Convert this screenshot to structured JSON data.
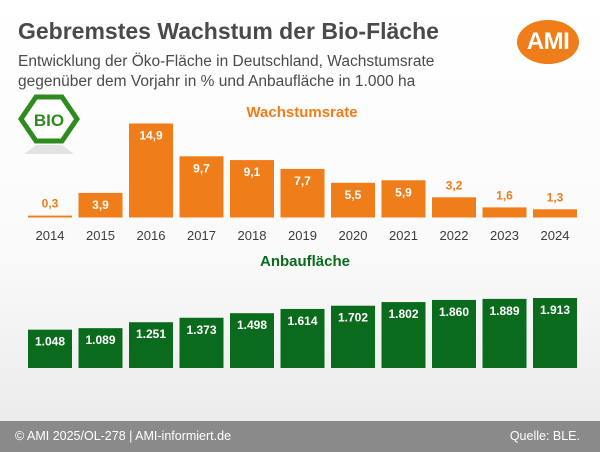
{
  "header": {
    "title": "Gebremstes Wachstum der Bio-Fläche",
    "subtitle": "Entwicklung der Öko-Fläche in Deutschland, Wachstumsrate gegenüber dem Vorjahr in % und Anbaufläche in 1.000 ha",
    "logo_text": "AMI",
    "badge_text": "BIO"
  },
  "footer": {
    "left": "© AMI 2025/OL-278 | AMI-informiert.de",
    "right": "Quelle: BLE."
  },
  "colors": {
    "orange": "#ef7d1a",
    "green": "#0b6b1d",
    "title_gray": "#4a4a4a",
    "footer_gray": "#8a8a8a"
  },
  "chart_data": [
    {
      "type": "bar",
      "title": "Wachstumsrate",
      "categories": [
        "2014",
        "2015",
        "2016",
        "2017",
        "2018",
        "2019",
        "2020",
        "2021",
        "2022",
        "2023",
        "2024"
      ],
      "values": [
        0.3,
        3.9,
        14.9,
        9.7,
        9.1,
        7.7,
        5.5,
        5.9,
        3.2,
        1.6,
        1.3
      ],
      "labels": [
        "0,3",
        "3,9",
        "14,9",
        "9,7",
        "9,1",
        "7,7",
        "5,5",
        "5,9",
        "3,2",
        "1,6",
        "1,3"
      ],
      "color": "#ef7d1a"
    },
    {
      "type": "bar",
      "title": "Anbaufläche",
      "categories": [
        "2014",
        "2015",
        "2016",
        "2017",
        "2018",
        "2019",
        "2020",
        "2021",
        "2022",
        "2023",
        "2024"
      ],
      "values": [
        1048,
        1089,
        1251,
        1373,
        1498,
        1614,
        1702,
        1802,
        1860,
        1889,
        1913
      ],
      "labels": [
        "1.048",
        "1.089",
        "1.251",
        "1.373",
        "1.498",
        "1.614",
        "1.702",
        "1.802",
        "1.860",
        "1.889",
        "1.913"
      ],
      "color": "#0b6b1d"
    }
  ]
}
